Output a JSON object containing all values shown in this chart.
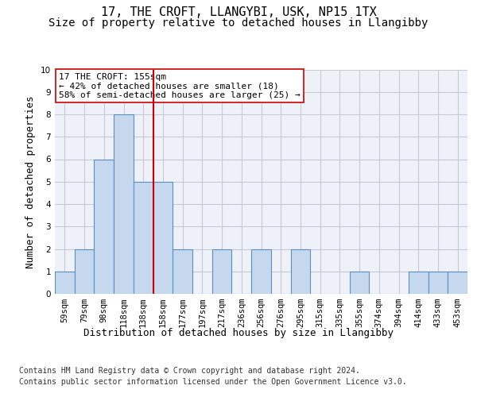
{
  "title1": "17, THE CROFT, LLANGYBI, USK, NP15 1TX",
  "title2": "Size of property relative to detached houses in Llangibby",
  "xlabel": "Distribution of detached houses by size in Llangibby",
  "ylabel": "Number of detached properties",
  "categories": [
    "59sqm",
    "79sqm",
    "98sqm",
    "118sqm",
    "138sqm",
    "158sqm",
    "177sqm",
    "197sqm",
    "217sqm",
    "236sqm",
    "256sqm",
    "276sqm",
    "295sqm",
    "315sqm",
    "335sqm",
    "355sqm",
    "374sqm",
    "394sqm",
    "414sqm",
    "433sqm",
    "453sqm"
  ],
  "values": [
    1,
    2,
    6,
    8,
    5,
    5,
    2,
    0,
    2,
    0,
    2,
    0,
    2,
    0,
    0,
    1,
    0,
    0,
    1,
    1,
    1
  ],
  "bar_color": "#c5d8ed",
  "bar_edge_color": "#5a8fc0",
  "bar_edge_width": 0.8,
  "vline_x": 4.5,
  "vline_color": "#cc0000",
  "annotation_text": "17 THE CROFT: 155sqm\n← 42% of detached houses are smaller (18)\n58% of semi-detached houses are larger (25) →",
  "annotation_box_color": "#ffffff",
  "annotation_box_edge": "#cc0000",
  "ylim": [
    0,
    10
  ],
  "yticks": [
    0,
    1,
    2,
    3,
    4,
    5,
    6,
    7,
    8,
    9,
    10
  ],
  "grid_color": "#c8c8d8",
  "bg_color": "#eef2f8",
  "footer1": "Contains HM Land Registry data © Crown copyright and database right 2024.",
  "footer2": "Contains public sector information licensed under the Open Government Licence v3.0.",
  "title1_fontsize": 11,
  "title2_fontsize": 10,
  "xlabel_fontsize": 9,
  "ylabel_fontsize": 9,
  "tick_fontsize": 7.5,
  "annotation_fontsize": 8,
  "footer_fontsize": 7
}
